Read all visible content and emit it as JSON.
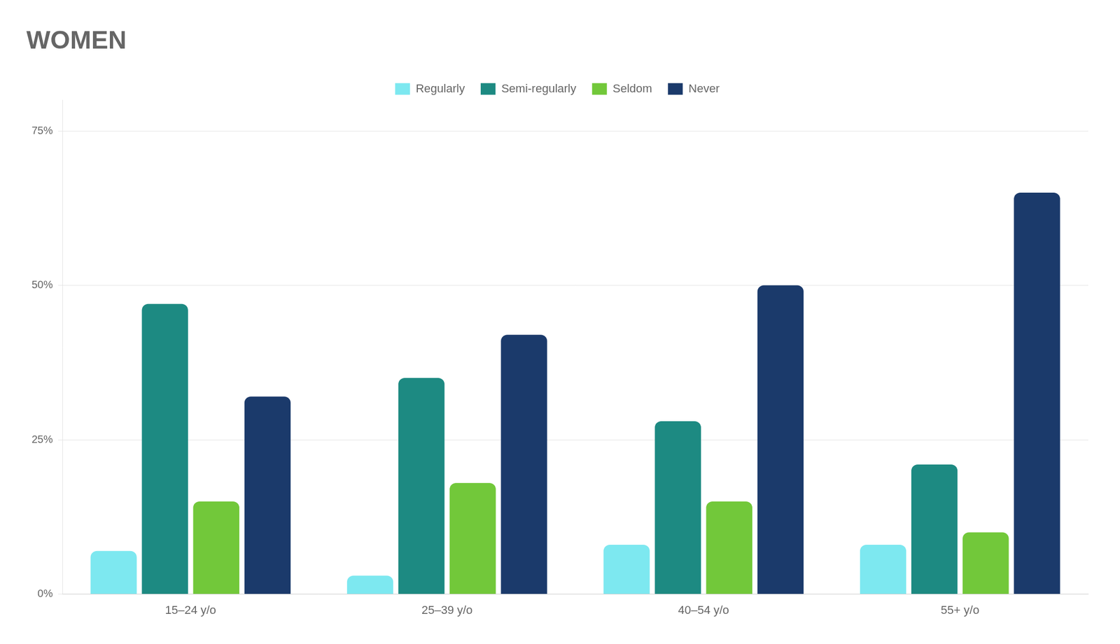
{
  "chart_data": {
    "type": "bar",
    "title": "WOMEN",
    "categories": [
      "15–24 y/o",
      "25–39 y/o",
      "40–54 y/o",
      "55+ y/o"
    ],
    "series": [
      {
        "name": "Regularly",
        "color": "#7DE8F0",
        "values": [
          7,
          3,
          8,
          8
        ]
      },
      {
        "name": "Semi-regularly",
        "color": "#1D8A82",
        "values": [
          47,
          35,
          28,
          21
        ]
      },
      {
        "name": "Seldom",
        "color": "#72C83A",
        "values": [
          15,
          18,
          15,
          10
        ]
      },
      {
        "name": "Never",
        "color": "#1B3A6B",
        "values": [
          32,
          42,
          50,
          65
        ]
      }
    ],
    "ylim": [
      0,
      80
    ],
    "yticks": [
      {
        "value": 0,
        "label": "0%"
      },
      {
        "value": 25,
        "label": "25%"
      },
      {
        "value": 50,
        "label": "50%"
      },
      {
        "value": 75,
        "label": "75%"
      }
    ],
    "grid": true,
    "legend": "top"
  }
}
